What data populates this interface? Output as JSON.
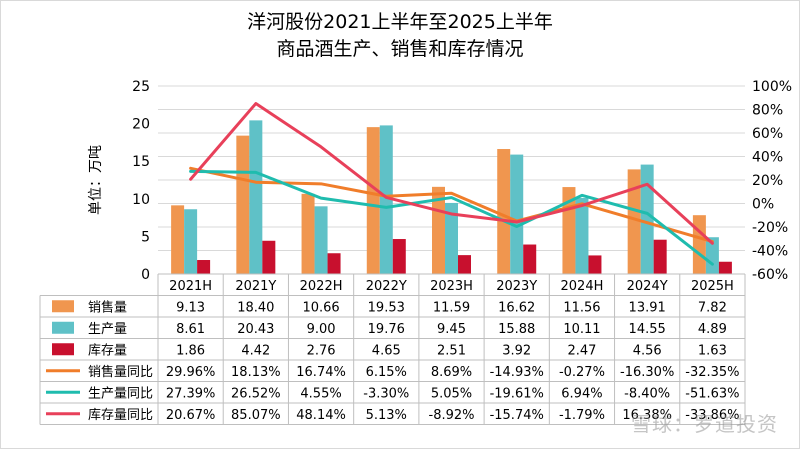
{
  "chart_data": {
    "type": "bar",
    "title_line1": "洋河股份2021上半年至2025上半年",
    "title_line2": "商品酒生产、销售和库存情况",
    "ylabel": "单位：万吨",
    "ylim": [
      0,
      25
    ],
    "y_ticks": [
      "0",
      "5",
      "10",
      "15",
      "20",
      "25"
    ],
    "y2lim": [
      -60,
      100
    ],
    "y2_ticks": [
      "-60%",
      "-40%",
      "-20%",
      "0%",
      "20%",
      "40%",
      "60%",
      "80%",
      "100%"
    ],
    "grid": true,
    "legend": "table-below",
    "categories": [
      "2021H",
      "2021Y",
      "2022H",
      "2022Y",
      "2023H",
      "2023Y",
      "2024H",
      "2024Y",
      "2025H"
    ],
    "bar_series": [
      {
        "name": "销售量",
        "color": "#f0964f",
        "values": [
          9.13,
          18.4,
          10.66,
          19.53,
          11.59,
          16.62,
          11.56,
          13.91,
          7.82
        ],
        "labels": [
          "9.13",
          "18.40",
          "10.66",
          "19.53",
          "11.59",
          "16.62",
          "11.56",
          "13.91",
          "7.82"
        ]
      },
      {
        "name": "生产量",
        "color": "#5fc1c7",
        "values": [
          8.61,
          20.43,
          9.0,
          19.76,
          9.45,
          15.88,
          10.11,
          14.55,
          4.89
        ],
        "labels": [
          "8.61",
          "20.43",
          "9.00",
          "19.76",
          "9.45",
          "15.88",
          "10.11",
          "14.55",
          "4.89"
        ]
      },
      {
        "name": "库存量",
        "color": "#c8102e",
        "values": [
          1.86,
          4.42,
          2.76,
          4.65,
          2.51,
          3.92,
          2.47,
          4.56,
          1.63
        ],
        "labels": [
          "1.86",
          "4.42",
          "2.76",
          "4.65",
          "2.51",
          "3.92",
          "2.47",
          "4.56",
          "1.63"
        ]
      }
    ],
    "line_series": [
      {
        "name": "销售量同比",
        "color": "#f07d2a",
        "values": [
          29.96,
          18.13,
          16.74,
          6.15,
          8.69,
          -14.93,
          -0.27,
          -16.3,
          -32.35
        ],
        "labels": [
          "29.96%",
          "18.13%",
          "16.74%",
          "6.15%",
          "8.69%",
          "-14.93%",
          "-0.27%",
          "-16.30%",
          "-32.35%"
        ]
      },
      {
        "name": "生产量同比",
        "color": "#1fbcae",
        "values": [
          27.39,
          26.52,
          4.55,
          -3.3,
          5.05,
          -19.61,
          6.94,
          -8.4,
          -51.63
        ],
        "labels": [
          "27.39%",
          "26.52%",
          "4.55%",
          "-3.30%",
          "5.05%",
          "-19.61%",
          "6.94%",
          "-8.40%",
          "-51.63%"
        ]
      },
      {
        "name": "库存量同比",
        "color": "#e8405a",
        "values": [
          20.67,
          85.07,
          48.14,
          5.13,
          -8.92,
          -15.74,
          -1.79,
          16.38,
          -33.86
        ],
        "labels": [
          "20.67%",
          "85.07%",
          "48.14%",
          "5.13%",
          "-8.92%",
          "-15.74%",
          "-1.79%",
          "16.38%",
          "-33.86%"
        ]
      }
    ]
  },
  "watermark": "雪球：罗道投资"
}
